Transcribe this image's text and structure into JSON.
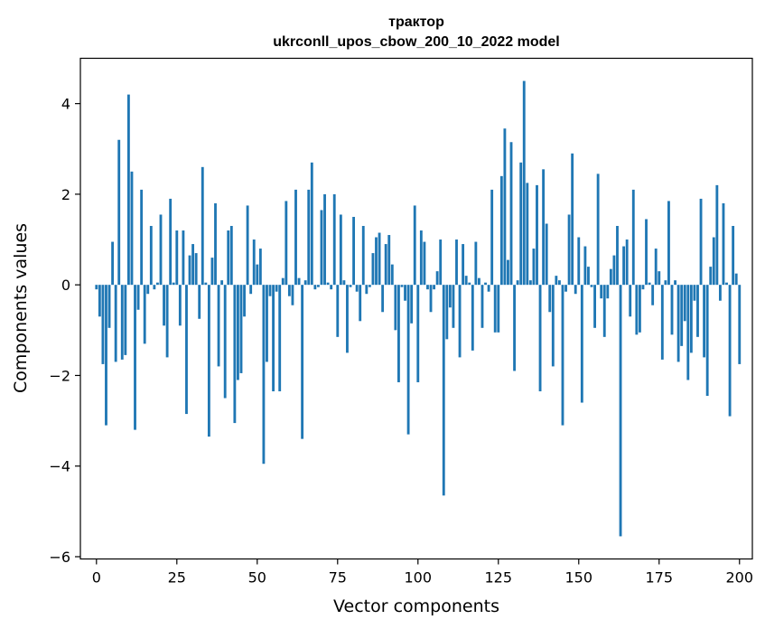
{
  "chart_data": {
    "type": "bar",
    "title": "трактор",
    "subtitle": "ukrconll_upos_cbow_200_10_2022 model",
    "xlabel": "Vector components",
    "ylabel": "Components values",
    "xlim": [
      -5,
      204
    ],
    "ylim": [
      -6.05,
      5.0
    ],
    "xticks": [
      0,
      25,
      50,
      75,
      100,
      125,
      150,
      175,
      200
    ],
    "yticks": [
      -6,
      -4,
      -2,
      0,
      2,
      4
    ],
    "ytick_labels": [
      "−6",
      "−4",
      "−2",
      "0",
      "2",
      "4"
    ],
    "grid": false,
    "bar_color": "#1f77b4",
    "values": [
      -0.1,
      -0.7,
      -1.75,
      -3.1,
      -0.95,
      0.95,
      -1.7,
      3.2,
      -1.65,
      -1.55,
      4.2,
      2.5,
      -3.2,
      -0.55,
      2.1,
      -1.3,
      -0.2,
      1.3,
      -0.1,
      0.05,
      1.55,
      -0.9,
      -1.6,
      1.9,
      0.05,
      1.2,
      -0.9,
      1.2,
      -2.85,
      0.65,
      0.9,
      0.7,
      -0.75,
      2.6,
      0.05,
      -3.35,
      0.6,
      1.8,
      -1.8,
      0.1,
      -2.5,
      1.2,
      1.3,
      -3.05,
      -2.1,
      -1.95,
      -0.7,
      1.75,
      -0.2,
      1.0,
      0.45,
      0.8,
      -3.95,
      -1.7,
      -0.25,
      -2.35,
      -0.15,
      -2.35,
      0.15,
      1.85,
      -0.25,
      -0.45,
      2.1,
      0.15,
      -3.4,
      0.1,
      2.1,
      2.7,
      -0.1,
      -0.05,
      1.65,
      2.0,
      0.05,
      -0.1,
      2.0,
      -1.15,
      1.55,
      0.1,
      -1.5,
      -0.05,
      1.5,
      -0.15,
      -0.8,
      1.3,
      -0.2,
      -0.05,
      0.7,
      1.05,
      1.15,
      -0.6,
      0.9,
      1.1,
      0.45,
      -1.0,
      -2.15,
      -0.05,
      -0.35,
      -3.3,
      -0.85,
      1.75,
      -2.15,
      1.2,
      0.95,
      -0.1,
      -0.6,
      -0.1,
      0.3,
      1.0,
      -4.65,
      -1.2,
      -0.5,
      -0.95,
      1.0,
      -1.6,
      0.9,
      0.2,
      0.05,
      -1.45,
      0.95,
      0.15,
      -0.95,
      0.05,
      -0.15,
      2.1,
      -1.05,
      -1.05,
      2.4,
      3.45,
      0.55,
      3.15,
      -1.9,
      0.1,
      2.7,
      4.5,
      2.25,
      0.1,
      0.8,
      2.2,
      -2.35,
      2.55,
      1.35,
      -0.6,
      -1.8,
      0.2,
      0.1,
      -3.1,
      -0.15,
      1.55,
      2.9,
      -0.2,
      1.05,
      -2.6,
      0.85,
      0.4,
      -0.05,
      -0.95,
      2.45,
      -0.3,
      -1.15,
      -0.3,
      0.35,
      0.65,
      1.3,
      -5.55,
      0.85,
      1.0,
      -0.7,
      2.1,
      -1.1,
      -1.05,
      -0.1,
      1.45,
      0.05,
      -0.45,
      0.8,
      0.3,
      -1.65,
      0.1,
      1.85,
      -1.1,
      0.1,
      -1.7,
      -1.35,
      -0.8,
      -2.1,
      -1.5,
      -0.35,
      -1.15,
      1.9,
      -1.6,
      -2.45,
      0.4,
      1.05,
      2.2,
      -0.35,
      1.8,
      0.05,
      -2.9,
      1.3,
      0.25,
      -1.75
    ]
  }
}
